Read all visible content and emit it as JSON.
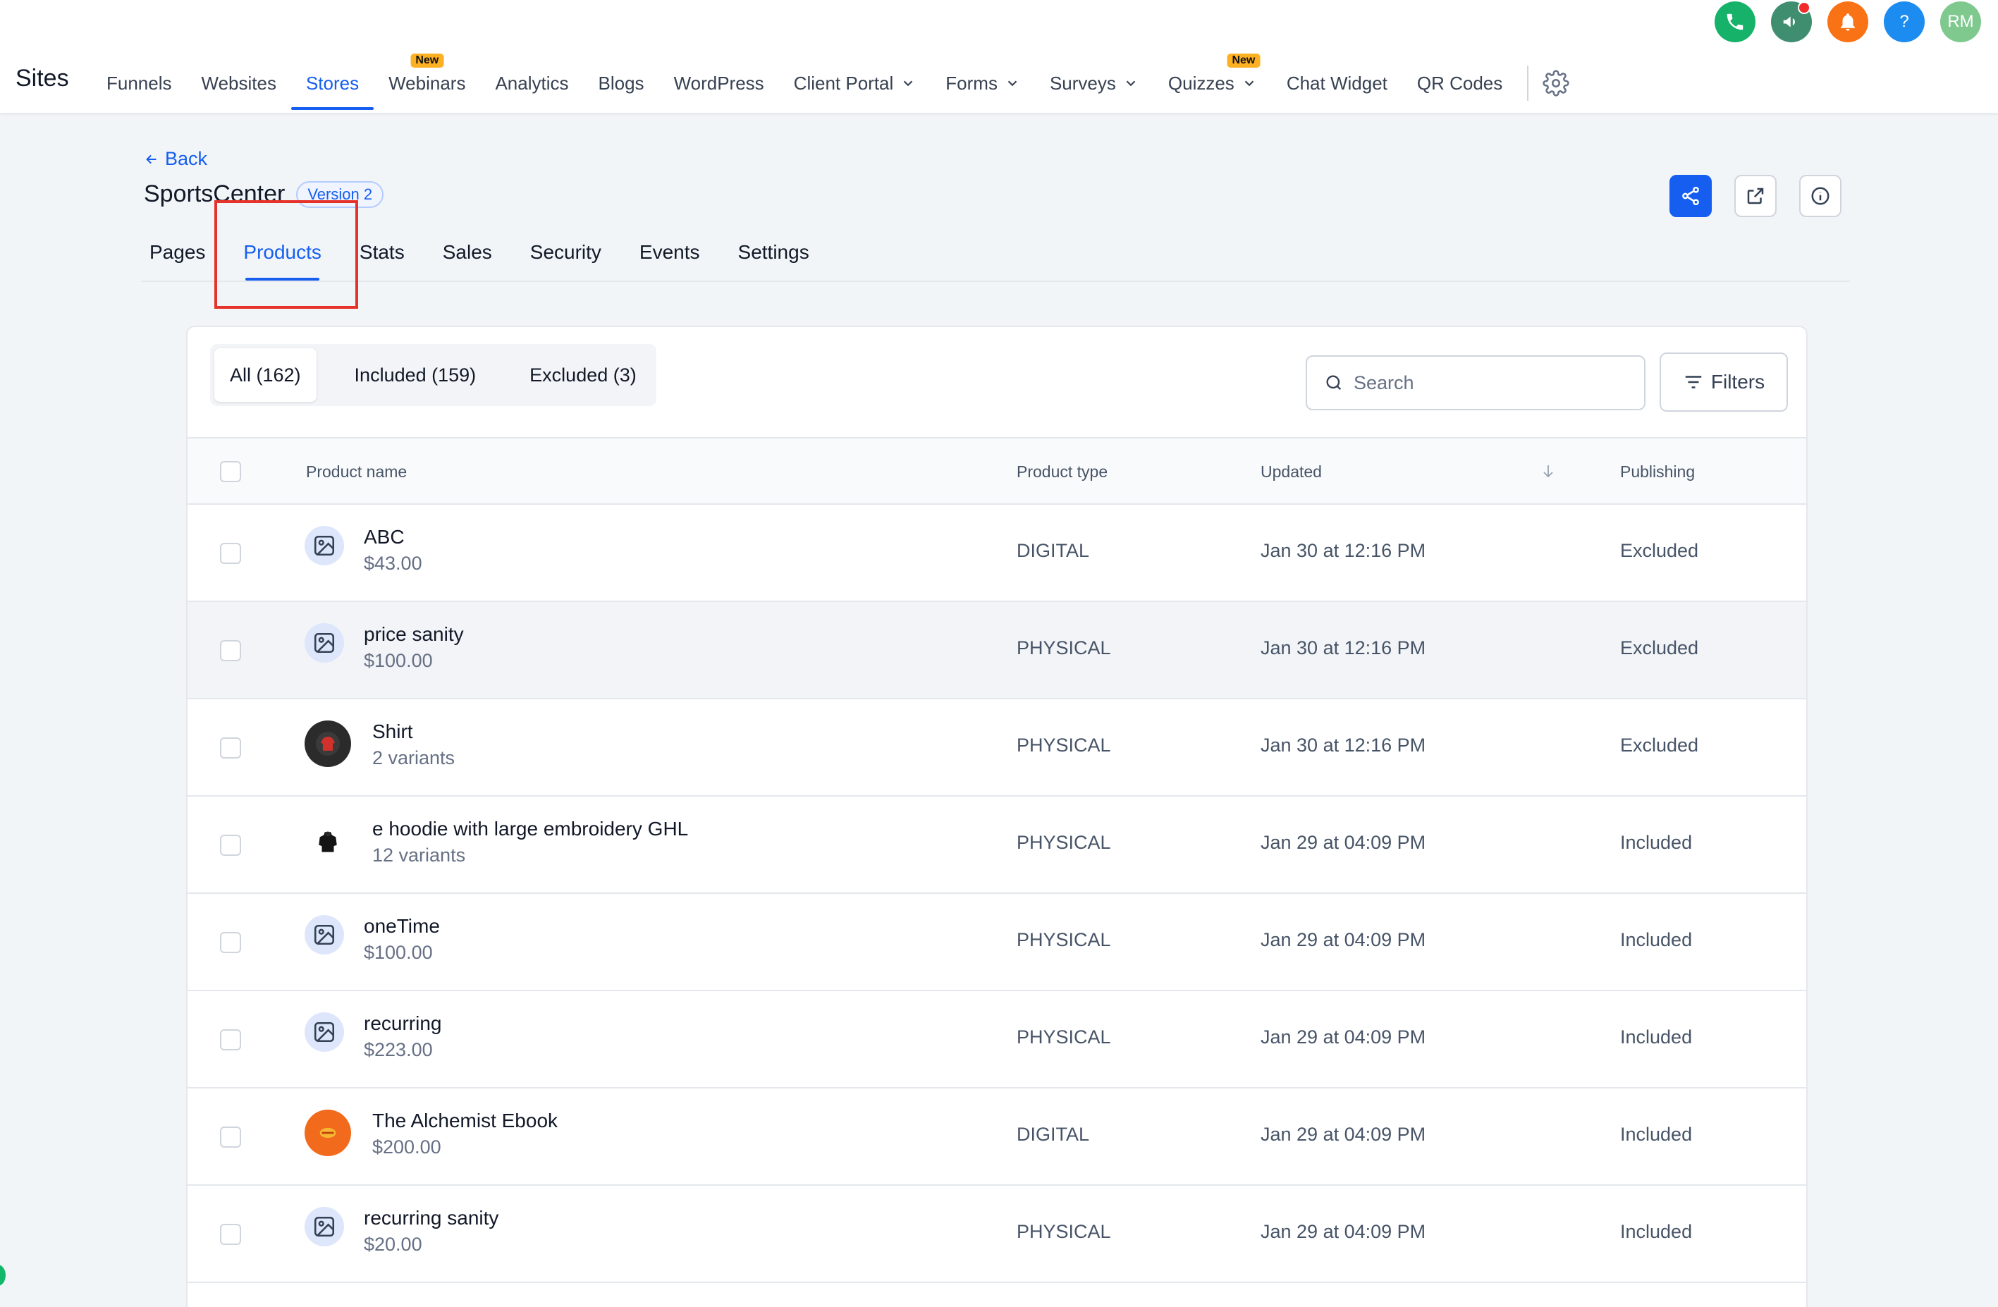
{
  "app": {
    "brand": "Sites"
  },
  "nav": {
    "items": [
      {
        "label": "Funnels"
      },
      {
        "label": "Websites"
      },
      {
        "label": "Stores",
        "active": true
      },
      {
        "label": "Webinars",
        "badge": "New"
      },
      {
        "label": "Analytics"
      },
      {
        "label": "Blogs"
      },
      {
        "label": "WordPress"
      },
      {
        "label": "Client Portal",
        "dropdown": true
      },
      {
        "label": "Forms",
        "dropdown": true
      },
      {
        "label": "Surveys",
        "dropdown": true
      },
      {
        "label": "Quizzes",
        "dropdown": true,
        "badge": "New"
      },
      {
        "label": "Chat Widget"
      },
      {
        "label": "QR Codes"
      }
    ],
    "settings_icon": "gear-icon"
  },
  "utility": {
    "phone_color": "#17b26a",
    "announce_color": "#3e8e6f",
    "bell_color": "#f97316",
    "help_color": "#1d8cf0",
    "help_label": "?",
    "avatar_color": "#7fc98f",
    "avatar_initials": "RM"
  },
  "page": {
    "back_label": "Back",
    "site_name": "SportsCenter",
    "version_badge": "Version 2",
    "tabs": [
      "Pages",
      "Products",
      "Stats",
      "Sales",
      "Security",
      "Events",
      "Settings"
    ],
    "active_tab": "Products",
    "highlight_color": "#e5332a"
  },
  "products": {
    "segments": [
      "All (162)",
      "Included (159)",
      "Excluded (3)"
    ],
    "search_placeholder": "Search",
    "filters_label": "Filters",
    "columns": {
      "name": "Product name",
      "type": "Product type",
      "updated": "Updated",
      "publishing": "Publishing"
    },
    "rows": [
      {
        "name": "ABC",
        "sub": "$43.00",
        "type": "DIGITAL",
        "updated": "Jan 30 at 12:16 PM",
        "publishing": "Excluded",
        "thumb": "image-placeholder-icon"
      },
      {
        "name": "price sanity",
        "sub": "$100.00",
        "type": "PHYSICAL",
        "updated": "Jan 30 at 12:16 PM",
        "publishing": "Excluded",
        "thumb": "image-placeholder-icon"
      },
      {
        "name": "Shirt",
        "sub": "2 variants",
        "type": "PHYSICAL",
        "updated": "Jan 30 at 12:16 PM",
        "publishing": "Excluded",
        "thumb": "red-shirt-photo"
      },
      {
        "name": "e hoodie with large embroidery GHL",
        "sub": "12 variants",
        "type": "PHYSICAL",
        "updated": "Jan 29 at 04:09 PM",
        "publishing": "Included",
        "thumb": "black-hoodie-photo"
      },
      {
        "name": "oneTime",
        "sub": "$100.00",
        "type": "PHYSICAL",
        "updated": "Jan 29 at 04:09 PM",
        "publishing": "Included",
        "thumb": "image-placeholder-icon"
      },
      {
        "name": "recurring",
        "sub": "$223.00",
        "type": "PHYSICAL",
        "updated": "Jan 29 at 04:09 PM",
        "publishing": "Included",
        "thumb": "image-placeholder-icon"
      },
      {
        "name": "The Alchemist Ebook",
        "sub": "$200.00",
        "type": "DIGITAL",
        "updated": "Jan 29 at 04:09 PM",
        "publishing": "Included",
        "thumb": "ebook-cover-photo"
      },
      {
        "name": "recurring sanity",
        "sub": "$20.00",
        "type": "PHYSICAL",
        "updated": "Jan 29 at 04:09 PM",
        "publishing": "Included",
        "thumb": "image-placeholder-icon"
      }
    ]
  }
}
